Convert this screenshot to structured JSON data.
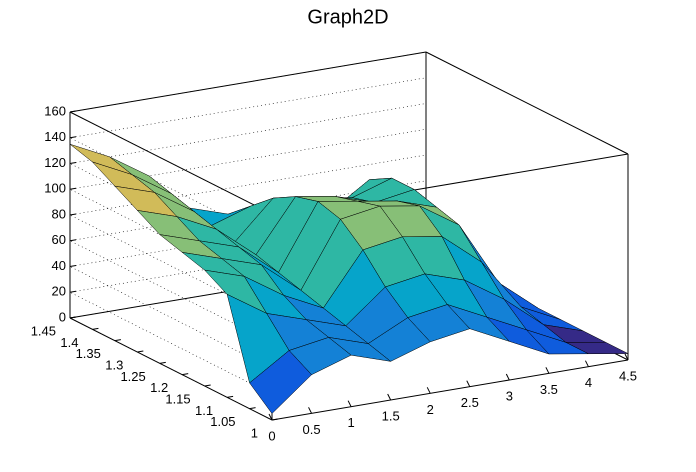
{
  "chart_data": {
    "type": "surface3d",
    "title": "Graph2D",
    "x": [
      0,
      0.5,
      1,
      1.5,
      2,
      2.5,
      3,
      3.5,
      4,
      4.5
    ],
    "y": [
      1,
      1.05,
      1.1,
      1.15,
      1.2,
      1.25,
      1.3,
      1.35,
      1.4,
      1.45
    ],
    "z": [
      [
        5,
        30,
        40,
        30,
        40,
        45,
        30,
        15,
        10,
        5
      ],
      [
        20,
        40,
        45,
        35,
        50,
        55,
        40,
        25,
        10,
        5
      ],
      [
        80,
        60,
        50,
        40,
        65,
        70,
        60,
        40,
        15,
        5
      ],
      [
        90,
        80,
        60,
        45,
        85,
        90,
        85,
        60,
        20,
        5
      ],
      [
        95,
        85,
        75,
        50,
        100,
        105,
        100,
        80,
        30,
        5
      ],
      [
        100,
        90,
        80,
        55,
        105,
        100,
        95,
        85,
        35,
        5
      ],
      [
        110,
        100,
        85,
        60,
        100,
        95,
        85,
        90,
        30,
        5
      ],
      [
        120,
        110,
        90,
        60,
        90,
        85,
        80,
        90,
        20,
        5
      ],
      [
        130,
        115,
        95,
        65,
        75,
        70,
        60,
        80,
        15,
        5
      ],
      [
        135,
        120,
        100,
        70,
        60,
        55,
        50,
        45,
        10,
        5
      ]
    ],
    "xlim": [
      0,
      4.5
    ],
    "ylim": [
      1,
      1.45
    ],
    "zlim": [
      0,
      160
    ],
    "xticks": [
      0,
      0.5,
      1,
      1.5,
      2,
      2.5,
      3,
      3.5,
      4,
      4.5
    ],
    "yticks": [
      1,
      1.05,
      1.1,
      1.15,
      1.2,
      1.25,
      1.3,
      1.35,
      1.4,
      1.45
    ],
    "zticks": [
      0,
      20,
      40,
      60,
      80,
      100,
      120,
      140,
      160
    ],
    "grid": true,
    "colormap": [
      "#352a87",
      "#0f5cdd",
      "#1481d6",
      "#06a4ca",
      "#2eb7a4",
      "#87bf77",
      "#d1bb59",
      "#fec832",
      "#f9fb0e"
    ]
  }
}
